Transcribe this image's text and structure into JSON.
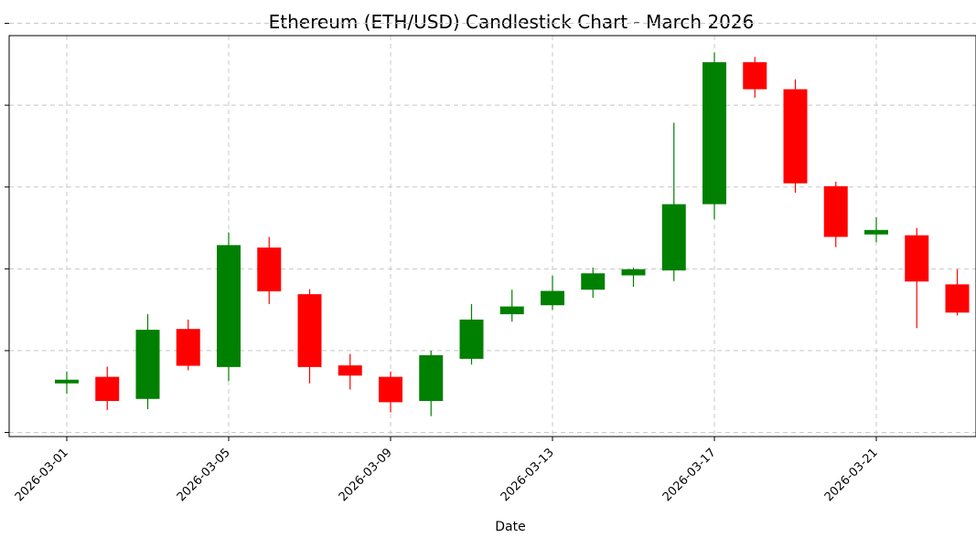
{
  "chart_data": {
    "type": "candlestick",
    "title": "Ethereum (ETH/USD) Candlestick Chart - March 2026",
    "xlabel": "Date",
    "ylabel": "",
    "x_tick_labels": [
      "2026-03-01",
      "2026-03-05",
      "2026-03-09",
      "2026-03-13",
      "2026-03-17",
      "2026-03-21"
    ],
    "y_ticks": [
      0,
      20,
      40,
      60,
      80,
      100
    ],
    "y_tick_labels_visible": false,
    "ylim": [
      -1,
      97
    ],
    "grid": true,
    "colors": {
      "up": "#008000",
      "down": "#ff0000",
      "grid": "#c8c8c8"
    },
    "candles": [
      {
        "date": "2026-03-01",
        "open": 12.0,
        "high": 14.9,
        "low": 9.5,
        "close": 12.9
      },
      {
        "date": "2026-03-02",
        "open": 13.6,
        "high": 16.1,
        "low": 5.5,
        "close": 7.7
      },
      {
        "date": "2026-03-03",
        "open": 8.2,
        "high": 28.9,
        "low": 5.7,
        "close": 25.1
      },
      {
        "date": "2026-03-04",
        "open": 25.3,
        "high": 27.6,
        "low": 15.2,
        "close": 16.3
      },
      {
        "date": "2026-03-05",
        "open": 16.0,
        "high": 48.9,
        "low": 12.6,
        "close": 45.8
      },
      {
        "date": "2026-03-06",
        "open": 45.2,
        "high": 47.8,
        "low": 31.4,
        "close": 34.5
      },
      {
        "date": "2026-03-07",
        "open": 33.8,
        "high": 35.0,
        "low": 12.0,
        "close": 16.0
      },
      {
        "date": "2026-03-08",
        "open": 16.4,
        "high": 19.2,
        "low": 10.5,
        "close": 13.9
      },
      {
        "date": "2026-03-09",
        "open": 13.6,
        "high": 14.9,
        "low": 4.9,
        "close": 7.4
      },
      {
        "date": "2026-03-10",
        "open": 7.7,
        "high": 20.0,
        "low": 4.0,
        "close": 18.9
      },
      {
        "date": "2026-03-11",
        "open": 18.0,
        "high": 31.4,
        "low": 16.6,
        "close": 27.6
      },
      {
        "date": "2026-03-12",
        "open": 28.9,
        "high": 34.9,
        "low": 27.1,
        "close": 30.8
      },
      {
        "date": "2026-03-13",
        "open": 31.1,
        "high": 38.3,
        "low": 30.0,
        "close": 34.6
      },
      {
        "date": "2026-03-14",
        "open": 34.9,
        "high": 40.3,
        "low": 32.9,
        "close": 38.9
      },
      {
        "date": "2026-03-15",
        "open": 38.4,
        "high": 40.3,
        "low": 35.6,
        "close": 39.9
      },
      {
        "date": "2026-03-16",
        "open": 39.6,
        "high": 75.7,
        "low": 37.0,
        "close": 55.8
      },
      {
        "date": "2026-03-17",
        "open": 55.8,
        "high": 92.9,
        "low": 52.1,
        "close": 90.5
      },
      {
        "date": "2026-03-18",
        "open": 90.5,
        "high": 91.8,
        "low": 81.8,
        "close": 83.9
      },
      {
        "date": "2026-03-19",
        "open": 83.9,
        "high": 86.3,
        "low": 58.6,
        "close": 60.9
      },
      {
        "date": "2026-03-20",
        "open": 60.2,
        "high": 61.3,
        "low": 45.3,
        "close": 47.8
      },
      {
        "date": "2026-03-21",
        "open": 48.4,
        "high": 52.6,
        "low": 46.5,
        "close": 49.5
      },
      {
        "date": "2026-03-22",
        "open": 48.2,
        "high": 50.0,
        "low": 25.5,
        "close": 36.9
      },
      {
        "date": "2026-03-23",
        "open": 36.2,
        "high": 39.9,
        "low": 28.6,
        "close": 29.3
      }
    ]
  }
}
